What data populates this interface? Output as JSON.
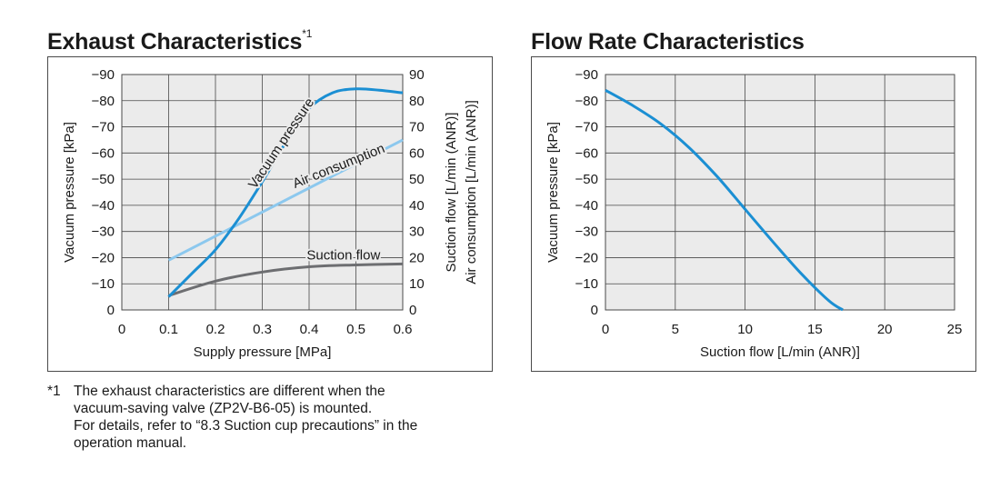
{
  "left": {
    "title": "Exhaust Characteristics",
    "title_mark": "*1",
    "ylabel_left": "Vacuum pressure [kPa]",
    "ylabel_right_1": "Suction flow [L/min (ANR)]",
    "ylabel_right_2": "Air consumption [L/min (ANR)]",
    "xlabel": "Supply pressure [MPa]",
    "curve_labels": {
      "vacuum": "Vacuum pressure",
      "air": "Air consumption",
      "suction": "Suction flow"
    }
  },
  "right": {
    "title": "Flow Rate Characteristics",
    "ylabel": "Vacuum pressure [kPa]",
    "xlabel": "Suction flow [L/min (ANR)]"
  },
  "footnote": {
    "mark": "*1",
    "lines": [
      "The exhaust characteristics are different when the",
      "vacuum-saving valve (ZP2V-B6-05) is mounted.",
      "For details, refer to “8.3 Suction cup precautions” in the",
      "operation manual."
    ]
  },
  "colors": {
    "vacuum": "#1b8fd3",
    "air": "#8cc8ee",
    "suction": "#6d6e71",
    "plot_bg": "#ebebeb",
    "grid": "#4a4a4a"
  },
  "chart_data": [
    {
      "type": "line",
      "title": "Exhaust Characteristics",
      "xlabel": "Supply pressure [MPa]",
      "ylabel": "Vacuum pressure [kPa]",
      "ylabel_right": [
        "Suction flow [L/min (ANR)]",
        "Air consumption [L/min (ANR)]"
      ],
      "xlim": [
        0,
        0.6
      ],
      "ylim": [
        0,
        -90
      ],
      "ylim_right": [
        0,
        90
      ],
      "x_ticks": [
        "0",
        "0.1",
        "0.2",
        "0.3",
        "0.4",
        "0.5",
        "0.6"
      ],
      "y_ticks": [
        "0",
        "−10",
        "−20",
        "−30",
        "−40",
        "−50",
        "−60",
        "−70",
        "−80",
        "−90"
      ],
      "y_ticks_right": [
        "0",
        "10",
        "20",
        "30",
        "40",
        "50",
        "60",
        "70",
        "80",
        "90"
      ],
      "grid": true,
      "series": [
        {
          "name": "Vacuum pressure",
          "axis": "left",
          "x": [
            0.1,
            0.15,
            0.2,
            0.25,
            0.3,
            0.35,
            0.4,
            0.45,
            0.5,
            0.55,
            0.6
          ],
          "y": [
            -5,
            -14,
            -23,
            -35,
            -49,
            -64,
            -77,
            -83,
            -84.5,
            -84,
            -83
          ]
        },
        {
          "name": "Air consumption",
          "axis": "right",
          "x": [
            0.1,
            0.6
          ],
          "y": [
            19,
            65
          ]
        },
        {
          "name": "Suction flow",
          "axis": "right",
          "x": [
            0.1,
            0.2,
            0.3,
            0.4,
            0.5,
            0.6
          ],
          "y": [
            5.5,
            11,
            14.5,
            16.5,
            17.2,
            17.6
          ]
        }
      ]
    },
    {
      "type": "line",
      "title": "Flow Rate Characteristics",
      "xlabel": "Suction flow [L/min (ANR)]",
      "ylabel": "Vacuum pressure [kPa]",
      "xlim": [
        0,
        25
      ],
      "ylim": [
        0,
        -90
      ],
      "x_ticks": [
        "0",
        "5",
        "10",
        "15",
        "20",
        "25"
      ],
      "y_ticks": [
        "0",
        "−10",
        "−20",
        "−30",
        "−40",
        "−50",
        "−60",
        "−70",
        "−80",
        "−90"
      ],
      "grid": true,
      "series": [
        {
          "x": [
            0,
            2,
            4,
            6,
            8,
            10,
            12,
            14,
            16,
            17
          ],
          "y": [
            -84,
            -78,
            -71,
            -62,
            -51,
            -38.5,
            -26,
            -14,
            -3.5,
            0
          ]
        }
      ]
    }
  ]
}
